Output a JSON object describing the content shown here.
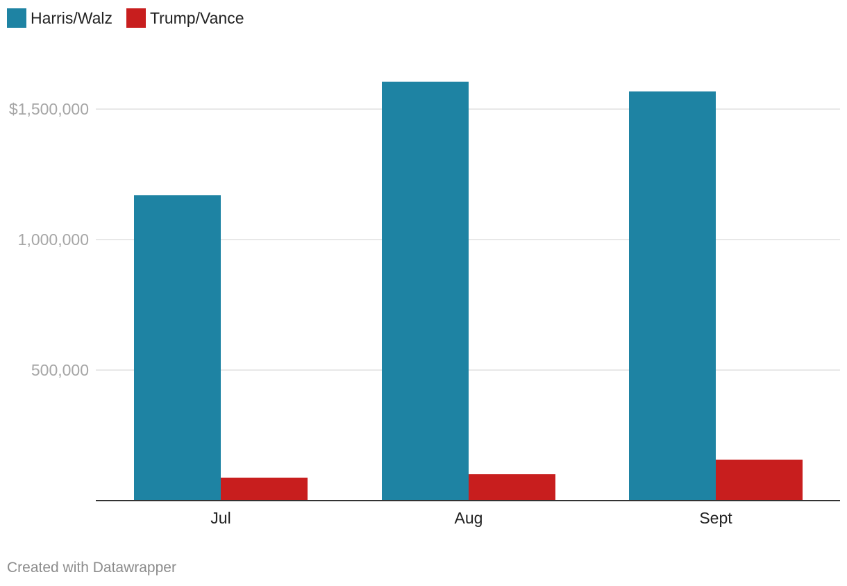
{
  "chart_data": {
    "type": "bar",
    "categories": [
      "Jul",
      "Aug",
      "Sept"
    ],
    "series": [
      {
        "name": "Harris/Walz",
        "color": "#1e83a3",
        "values": [
          1170000,
          1605000,
          1568000
        ]
      },
      {
        "name": "Trump/Vance",
        "color": "#c81e1e",
        "values": [
          88000,
          101000,
          157000
        ]
      }
    ],
    "y_ticks": [
      {
        "value": 500000,
        "label": "500,000"
      },
      {
        "value": 1000000,
        "label": "1,000,000"
      },
      {
        "value": 1500000,
        "label": "$1,500,000"
      }
    ],
    "ylim": [
      0,
      1700000
    ],
    "grid": true,
    "legend_position": "top-left",
    "title": "",
    "xlabel": "",
    "ylabel": ""
  },
  "footer": {
    "credit": "Created with Datawrapper"
  }
}
